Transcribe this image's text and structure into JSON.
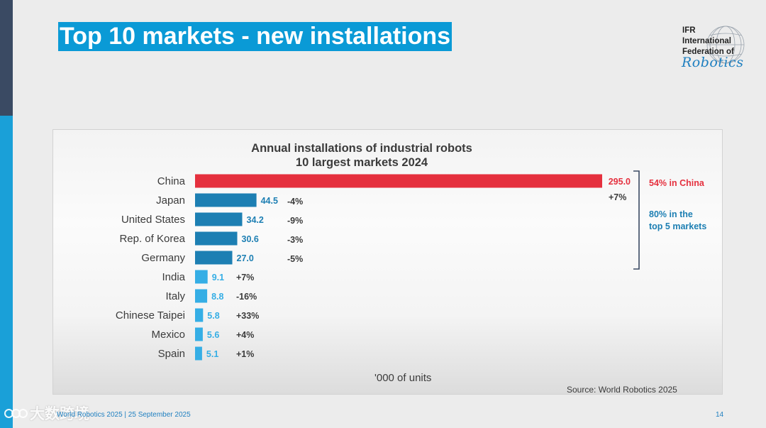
{
  "slide": {
    "title": "Top 10 markets - new installations",
    "footer": "World Robotics 2025 | 25 September 2025",
    "page_number": "14",
    "watermark": "大数跨境"
  },
  "logo": {
    "lines": [
      "IFR",
      "International",
      "Federation of"
    ],
    "script": "Robotics"
  },
  "colors": {
    "china": "#e5303e",
    "top5": "#1d7fb3",
    "others": "#35aee5",
    "title_bg": "#0a9ad6",
    "bracket": "#3a4a63"
  },
  "chart_data": {
    "type": "bar",
    "orientation": "horizontal",
    "title": [
      "Annual installations of industrial robots",
      "10 largest markets 2024"
    ],
    "categories": [
      "China",
      "Japan",
      "United States",
      "Rep. of Korea",
      "Germany",
      "India",
      "Italy",
      "Chinese Taipei",
      "Mexico",
      "Spain"
    ],
    "values": [
      295.0,
      44.5,
      34.2,
      30.6,
      27.0,
      9.1,
      8.8,
      5.8,
      5.6,
      5.1
    ],
    "value_labels": [
      "295.0",
      "44.5",
      "34.2",
      "30.6",
      "27.0",
      "9.1",
      "8.8",
      "5.8",
      "5.6",
      "5.1"
    ],
    "changes": [
      "+7%",
      "-4%",
      "-9%",
      "-3%",
      "-5%",
      "+7%",
      "-16%",
      "+33%",
      "+4%",
      "+1%"
    ],
    "xlabel": "'000 of units",
    "xlim": [
      0,
      295
    ],
    "grid": false,
    "annotations": [
      "54% in China",
      "80% in the",
      "top 5 markets"
    ],
    "source": "Source: World Robotics 2025"
  }
}
